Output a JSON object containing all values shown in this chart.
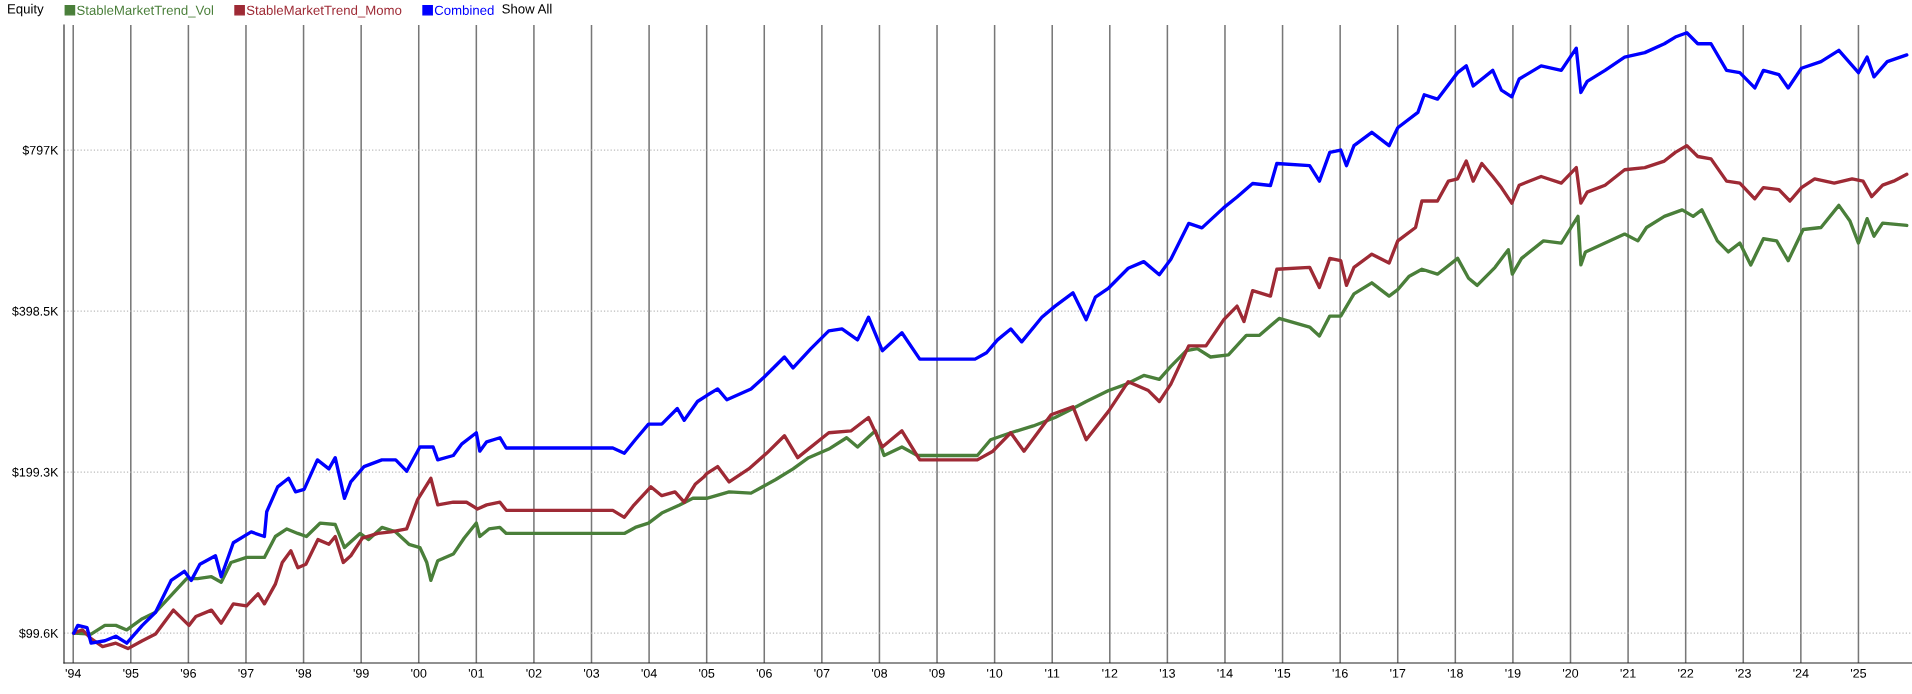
{
  "chart_data": {
    "type": "line",
    "title": "Equity",
    "annotations": [
      "Show All"
    ],
    "legend": "top left",
    "grid": true,
    "log": "y",
    "line_style": "solid",
    "xlim": [
      1993.84,
      2025.93
    ],
    "xticks": [
      {
        "value": 1994,
        "label": "'94"
      },
      {
        "value": 1995,
        "label": "'95"
      },
      {
        "value": 1996,
        "label": "'96"
      },
      {
        "value": 1997,
        "label": "'97"
      },
      {
        "value": 1998,
        "label": "'98"
      },
      {
        "value": 1999,
        "label": "'99"
      },
      {
        "value": 2000,
        "label": "'00"
      },
      {
        "value": 2001,
        "label": "'01"
      },
      {
        "value": 2002,
        "label": "'02"
      },
      {
        "value": 2003,
        "label": "'03"
      },
      {
        "value": 2004,
        "label": "'04"
      },
      {
        "value": 2005,
        "label": "'05"
      },
      {
        "value": 2006,
        "label": "'06"
      },
      {
        "value": 2007,
        "label": "'07"
      },
      {
        "value": 2008,
        "label": "'08"
      },
      {
        "value": 2009,
        "label": "'09"
      },
      {
        "value": 2010,
        "label": "'10"
      },
      {
        "value": 2011,
        "label": "'11"
      },
      {
        "value": 2012,
        "label": "'12"
      },
      {
        "value": 2013,
        "label": "'13"
      },
      {
        "value": 2014,
        "label": "'14"
      },
      {
        "value": 2015,
        "label": "'15"
      },
      {
        "value": 2016,
        "label": "'16"
      },
      {
        "value": 2017,
        "label": "'17"
      },
      {
        "value": 2018,
        "label": "'18"
      },
      {
        "value": 2019,
        "label": "'19"
      },
      {
        "value": 2020,
        "label": "'20"
      },
      {
        "value": 2021,
        "label": "'21"
      },
      {
        "value": 2022,
        "label": "'22"
      },
      {
        "value": 2023,
        "label": "'23"
      },
      {
        "value": 2024,
        "label": "'24"
      },
      {
        "value": 2025,
        "label": "'25"
      }
    ],
    "ylim": [
      87.6,
      1365
    ],
    "yticks": [
      {
        "value": 99.6,
        "label": "$99.6K"
      },
      {
        "value": 199.3,
        "label": "$199.3K"
      },
      {
        "value": 398.5,
        "label": "$398.5K"
      },
      {
        "value": 797,
        "label": "$797K"
      }
    ],
    "series": [
      {
        "name": "StableMarketTrend_Vol",
        "color": "#4a7f3a",
        "x": [
          1994.01,
          1994.31,
          1994.55,
          1994.74,
          1994.93,
          1995.2,
          1995.43,
          1995.66,
          1995.97,
          1996.16,
          1996.4,
          1996.57,
          1996.74,
          1997.01,
          1997.32,
          1997.51,
          1997.71,
          1997.9,
          1998.05,
          1998.29,
          1998.55,
          1998.71,
          1998.98,
          1999.13,
          1999.36,
          1999.6,
          1999.83,
          2000.02,
          2000.14,
          2000.21,
          2000.33,
          2000.6,
          2000.79,
          2001.0,
          2001.06,
          2001.22,
          2001.41,
          2001.52,
          2003.37,
          2003.57,
          2003.76,
          2003.99,
          2004.22,
          2004.53,
          2004.76,
          2005.0,
          2005.39,
          2005.77,
          2006.2,
          2006.5,
          2006.77,
          2007.12,
          2007.43,
          2007.62,
          2007.93,
          2008.08,
          2008.39,
          2008.66,
          2009.7,
          2009.93,
          2010.28,
          2010.67,
          2011.05,
          2011.36,
          2011.59,
          2011.98,
          2012.29,
          2012.59,
          2012.86,
          2013.06,
          2013.33,
          2013.52,
          2013.75,
          2014.06,
          2014.37,
          2014.6,
          2014.94,
          2015.47,
          2015.64,
          2015.82,
          2016.01,
          2016.24,
          2016.55,
          2016.85,
          2017.0,
          2017.2,
          2017.42,
          2017.69,
          2018.04,
          2018.23,
          2018.38,
          2018.69,
          2018.92,
          2018.99,
          2019.15,
          2019.53,
          2019.84,
          2020.13,
          2020.18,
          2020.26,
          2020.6,
          2020.94,
          2021.17,
          2021.32,
          2021.63,
          2021.94,
          2022.13,
          2022.28,
          2022.55,
          2022.74,
          2022.94,
          2023.13,
          2023.35,
          2023.58,
          2023.78,
          2024.04,
          2024.35,
          2024.66,
          2024.85,
          2025.0,
          2025.15,
          2025.27,
          2025.42,
          2025.84
        ],
        "values": [
          99.6,
          99.2,
          103,
          103,
          101,
          106,
          109,
          116,
          126,
          126,
          127,
          124,
          135,
          138,
          138,
          151,
          156,
          153,
          151,
          160,
          159,
          144,
          153,
          149,
          157,
          154,
          146,
          144,
          135,
          125,
          136,
          140,
          150,
          160,
          151,
          156,
          157,
          153,
          153,
          153,
          157,
          160,
          167,
          173,
          178,
          178,
          183,
          182,
          193,
          202,
          212,
          220,
          231,
          222,
          238,
          214,
          222,
          214,
          214,
          229,
          236,
          243,
          252,
          262,
          270,
          283,
          291,
          302,
          297,
          314,
          336,
          339,
          327,
          330,
          359,
          359,
          386,
          372,
          358,
          390,
          390,
          429,
          450,
          425,
          437,
          463,
          477,
          467,
          500,
          459,
          445,
          481,
          519,
          467,
          500,
          539,
          534,
          599,
          486,
          514,
          534,
          555,
          539,
          571,
          599,
          616,
          599,
          616,
          539,
          514,
          534,
          486,
          544,
          539,
          495,
          566,
          571,
          628,
          588,
          534,
          593,
          550,
          582,
          576
        ]
      },
      {
        "name": "StableMarketTrend_Momo",
        "color": "#9e2a35",
        "x": [
          1994.01,
          1994.16,
          1994.31,
          1994.51,
          1994.74,
          1994.95,
          1995.2,
          1995.43,
          1995.74,
          1996.01,
          1996.13,
          1996.4,
          1996.57,
          1996.78,
          1997.01,
          1997.21,
          1997.32,
          1997.51,
          1997.63,
          1997.78,
          1997.9,
          1998.04,
          1998.25,
          1998.44,
          1998.55,
          1998.69,
          1998.82,
          1999.02,
          1999.29,
          1999.52,
          1999.79,
          1999.98,
          2000.21,
          2000.33,
          2000.6,
          2000.83,
          2001.02,
          2001.18,
          2001.41,
          2001.52,
          2003.37,
          2003.57,
          2003.72,
          2004.03,
          2004.22,
          2004.45,
          2004.61,
          2004.8,
          2004.95,
          2005.0,
          2005.19,
          2005.39,
          2005.73,
          2006.04,
          2006.35,
          2006.58,
          2007.12,
          2007.51,
          2007.81,
          2008.05,
          2008.39,
          2008.7,
          2009.7,
          2009.97,
          2010.28,
          2010.51,
          2010.98,
          2011.36,
          2011.59,
          2011.98,
          2012.32,
          2012.67,
          2012.86,
          2013.06,
          2013.37,
          2013.67,
          2013.98,
          2014.21,
          2014.33,
          2014.48,
          2014.79,
          2014.9,
          2015.47,
          2015.64,
          2015.82,
          2016.01,
          2016.11,
          2016.24,
          2016.55,
          2016.85,
          2017.0,
          2017.31,
          2017.42,
          2017.69,
          2017.88,
          2018.04,
          2018.19,
          2018.31,
          2018.46,
          2018.65,
          2018.8,
          2018.98,
          2019.11,
          2019.49,
          2019.84,
          2020.1,
          2020.18,
          2020.29,
          2020.6,
          2020.94,
          2021.29,
          2021.63,
          2021.82,
          2022.02,
          2022.21,
          2022.44,
          2022.71,
          2022.94,
          2023.2,
          2023.35,
          2023.62,
          2023.81,
          2024.01,
          2024.24,
          2024.58,
          2024.89,
          2025.08,
          2025.23,
          2025.42,
          2025.61,
          2025.84
        ],
        "values": [
          99.6,
          101,
          97.3,
          94.0,
          95.4,
          93.2,
          96.4,
          99.2,
          110,
          103,
          107,
          110,
          104,
          113,
          112,
          118,
          113,
          123,
          135,
          142,
          132,
          134,
          149,
          146,
          151,
          135,
          139,
          150,
          153,
          154,
          156,
          177,
          194,
          173,
          175,
          175,
          170,
          173,
          175,
          169,
          169,
          164,
          172,
          187,
          180,
          183,
          175,
          189,
          195,
          198,
          204,
          191,
          202,
          216,
          233,
          212,
          236,
          238,
          252,
          222,
          238,
          210,
          210,
          218,
          236,
          218,
          255,
          264,
          229,
          259,
          294,
          283,
          270,
          291,
          343,
          343,
          384,
          407,
          381,
          435,
          425,
          477,
          481,
          441,
          500,
          495,
          445,
          481,
          509,
          490,
          539,
          571,
          640,
          640,
          697,
          704,
          760,
          697,
          752,
          711,
          678,
          634,
          685,
          711,
          691,
          739,
          634,
          665,
          685,
          732,
          739,
          760,
          789,
          812,
          775,
          767,
          697,
          691,
          646,
          678,
          672,
          640,
          678,
          704,
          691,
          704,
          697,
          652,
          685,
          697,
          718
        ]
      },
      {
        "name": "Combined",
        "color": "#0000ff",
        "x": [
          1994.01,
          1994.08,
          1994.24,
          1994.31,
          1994.55,
          1994.74,
          1994.93,
          1995.2,
          1995.43,
          1995.7,
          1995.93,
          1996.05,
          1996.2,
          1996.47,
          1996.57,
          1996.78,
          1997.09,
          1997.32,
          1997.36,
          1997.55,
          1997.74,
          1997.86,
          1998.01,
          1998.24,
          1998.44,
          1998.55,
          1998.71,
          1998.82,
          1999.05,
          1999.36,
          1999.6,
          1999.79,
          2000.02,
          2000.25,
          2000.33,
          2000.6,
          2000.75,
          2001.0,
          2001.06,
          2001.18,
          2001.41,
          2001.52,
          2003.37,
          2003.57,
          2003.76,
          2003.99,
          2004.22,
          2004.49,
          2004.61,
          2004.84,
          2005.0,
          2005.19,
          2005.35,
          2005.77,
          2006.0,
          2006.35,
          2006.5,
          2006.81,
          2007.12,
          2007.35,
          2007.62,
          2007.81,
          2008.05,
          2008.39,
          2008.7,
          2009.66,
          2009.86,
          2010.05,
          2010.28,
          2010.47,
          2010.82,
          2011.05,
          2011.36,
          2011.59,
          2011.75,
          2011.98,
          2012.32,
          2012.59,
          2012.86,
          2013.06,
          2013.37,
          2013.6,
          2013.98,
          2014.21,
          2014.48,
          2014.79,
          2014.9,
          2015.47,
          2015.64,
          2015.82,
          2016.01,
          2016.11,
          2016.24,
          2016.55,
          2016.85,
          2017.0,
          2017.35,
          2017.46,
          2017.69,
          2018.04,
          2018.19,
          2018.31,
          2018.65,
          2018.8,
          2018.98,
          2019.11,
          2019.49,
          2019.84,
          2020.1,
          2020.18,
          2020.29,
          2020.6,
          2020.94,
          2021.29,
          2021.63,
          2021.82,
          2022.02,
          2022.21,
          2022.44,
          2022.71,
          2022.94,
          2023.2,
          2023.35,
          2023.62,
          2023.78,
          2024.01,
          2024.35,
          2024.66,
          2025.0,
          2025.15,
          2025.27,
          2025.5,
          2025.84
        ],
        "values": [
          99.6,
          103,
          102,
          95.4,
          96.4,
          98.3,
          95.4,
          103,
          109,
          125,
          130,
          125,
          134,
          139,
          127,
          147,
          154,
          151,
          168,
          187,
          194,
          183,
          185,
          210,
          202,
          212,
          178,
          191,
          204,
          210,
          210,
          200,
          222,
          222,
          210,
          214,
          225,
          236,
          218,
          227,
          231,
          221,
          221,
          216,
          229,
          245,
          245,
          262,
          249,
          270,
          277,
          285,
          272,
          285,
          300,
          327,
          312,
          339,
          366,
          369,
          352,
          388,
          336,
          363,
          324,
          324,
          333,
          352,
          369,
          349,
          388,
          407,
          431,
          384,
          423,
          440,
          479,
          493,
          466,
          498,
          581,
          570,
          622,
          651,
          690,
          684,
          752,
          745,
          697,
          789,
          797,
          745,
          812,
          860,
          812,
          877,
          937,
          1011,
          992,
          1112,
          1145,
          1050,
          1123,
          1031,
          1002,
          1082,
          1145,
          1123,
          1235,
          1021,
          1071,
          1123,
          1189,
          1212,
          1259,
          1296,
          1320,
          1259,
          1259,
          1123,
          1112,
          1041,
          1123,
          1102,
          1041,
          1133,
          1166,
          1224,
          1112,
          1189,
          1092,
          1166,
          1200
        ]
      }
    ]
  }
}
